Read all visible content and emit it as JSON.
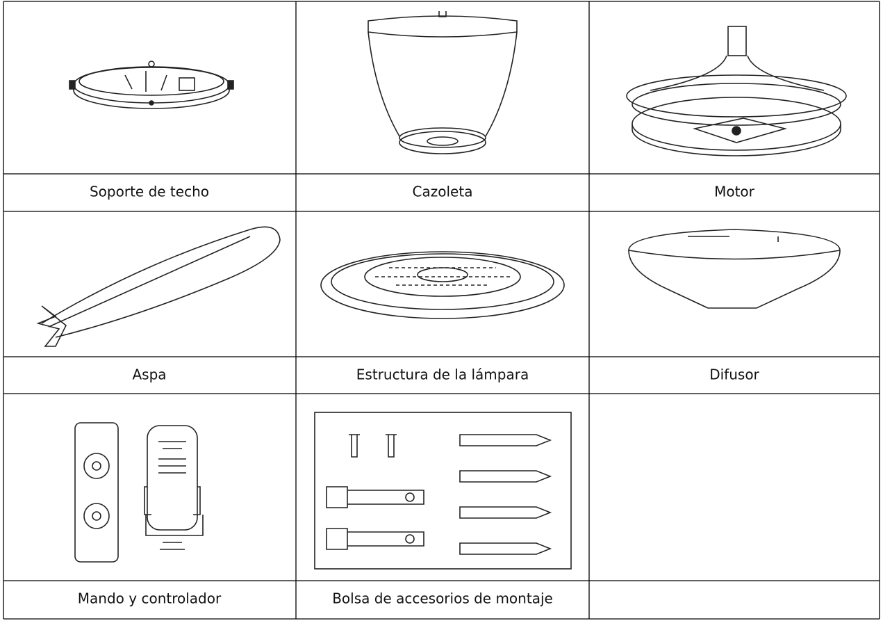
{
  "table": {
    "cells": [
      "Soporte de techo",
      "Cazoleta",
      "Motor",
      "Aspa",
      "Estructura de la lámpara",
      "Difusor",
      "Mando y controlador",
      "Bolsa de accesorios de montaje"
    ]
  }
}
